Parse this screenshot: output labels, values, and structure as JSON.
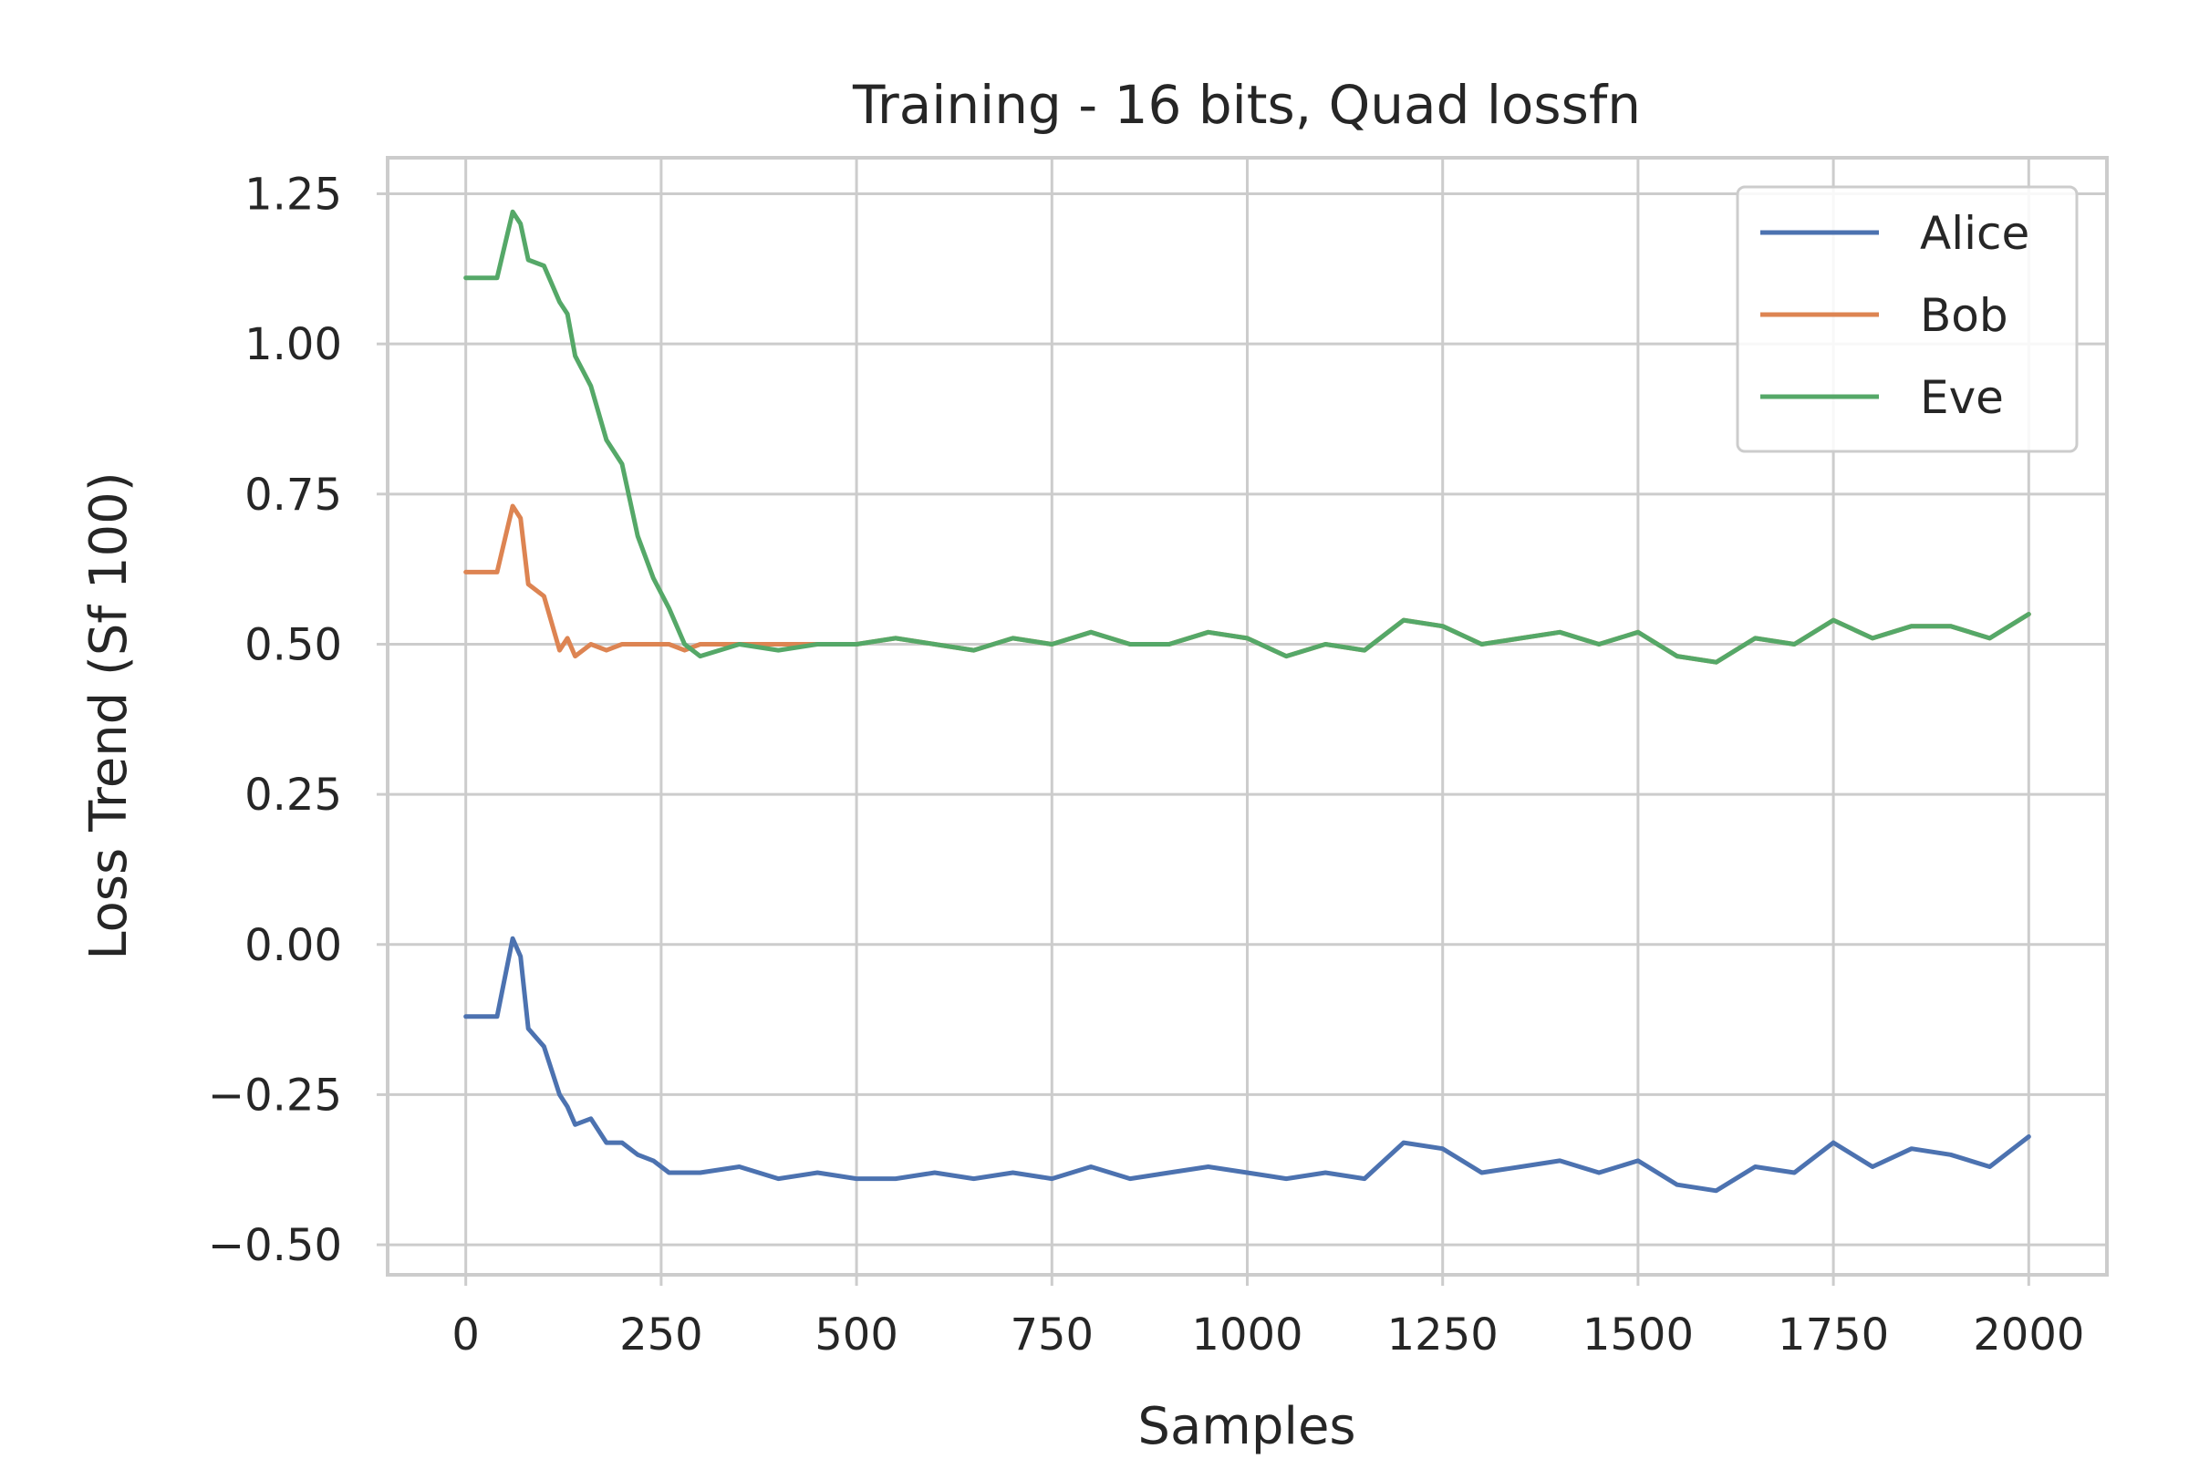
{
  "chart_data": {
    "type": "line",
    "title": "Training - 16 bits, Quad lossfn",
    "xlabel": "Samples",
    "ylabel": "Loss Trend (Sf 100)",
    "xlim": [
      -100,
      2100
    ],
    "ylim": [
      -0.55,
      1.31
    ],
    "xticks": [
      0,
      250,
      500,
      750,
      1000,
      1250,
      1500,
      1750,
      2000
    ],
    "xtick_labels": [
      "0",
      "250",
      "500",
      "750",
      "1000",
      "1250",
      "1500",
      "1750",
      "2000"
    ],
    "yticks": [
      1.25,
      1.0,
      0.75,
      0.5,
      0.25,
      0.0,
      -0.25,
      -0.5
    ],
    "ytick_labels": [
      "1.25",
      "1.00",
      "0.75",
      "0.50",
      "0.25",
      "0.00",
      "−0.25",
      "−0.50"
    ],
    "grid": true,
    "legend_position": "top-right",
    "x": [
      0,
      40,
      60,
      70,
      80,
      100,
      120,
      130,
      140,
      160,
      180,
      200,
      220,
      240,
      260,
      280,
      300,
      350,
      400,
      450,
      500,
      550,
      600,
      650,
      700,
      750,
      800,
      850,
      900,
      950,
      1000,
      1050,
      1100,
      1150,
      1200,
      1250,
      1300,
      1350,
      1400,
      1450,
      1500,
      1550,
      1600,
      1650,
      1700,
      1750,
      1800,
      1850,
      1900,
      1950,
      2000
    ],
    "series": [
      {
        "name": "Alice",
        "color": "#4c72b0",
        "values": [
          -0.12,
          -0.12,
          0.01,
          -0.02,
          -0.14,
          -0.17,
          -0.25,
          -0.27,
          -0.3,
          -0.29,
          -0.33,
          -0.33,
          -0.35,
          -0.36,
          -0.38,
          -0.38,
          -0.38,
          -0.37,
          -0.39,
          -0.38,
          -0.39,
          -0.39,
          -0.38,
          -0.39,
          -0.38,
          -0.39,
          -0.37,
          -0.39,
          -0.38,
          -0.37,
          -0.38,
          -0.39,
          -0.38,
          -0.39,
          -0.33,
          -0.34,
          -0.38,
          -0.37,
          -0.36,
          -0.38,
          -0.36,
          -0.4,
          -0.41,
          -0.37,
          -0.38,
          -0.33,
          -0.37,
          -0.34,
          -0.35,
          -0.37,
          -0.32
        ]
      },
      {
        "name": "Bob",
        "color": "#dd8452",
        "values": [
          0.62,
          0.62,
          0.73,
          0.71,
          0.6,
          0.58,
          0.49,
          0.51,
          0.48,
          0.5,
          0.49,
          0.5,
          0.5,
          0.5,
          0.5,
          0.49,
          0.5,
          0.5,
          0.5,
          0.5,
          0.5,
          0.51,
          0.5,
          0.49,
          0.51,
          0.5,
          0.52,
          0.5,
          0.5,
          0.52,
          0.51,
          0.48,
          0.5,
          0.49,
          0.54,
          0.53,
          0.5,
          0.51,
          0.52,
          0.5,
          0.52,
          0.48,
          0.47,
          0.51,
          0.5,
          0.54,
          0.51,
          0.53,
          0.53,
          0.51,
          0.55
        ]
      },
      {
        "name": "Eve",
        "color": "#55a868",
        "values": [
          1.11,
          1.11,
          1.22,
          1.2,
          1.14,
          1.13,
          1.07,
          1.05,
          0.98,
          0.93,
          0.84,
          0.8,
          0.68,
          0.61,
          0.56,
          0.5,
          0.48,
          0.5,
          0.49,
          0.5,
          0.5,
          0.51,
          0.5,
          0.49,
          0.51,
          0.5,
          0.52,
          0.5,
          0.5,
          0.52,
          0.51,
          0.48,
          0.5,
          0.49,
          0.54,
          0.53,
          0.5,
          0.51,
          0.52,
          0.5,
          0.52,
          0.48,
          0.47,
          0.51,
          0.5,
          0.54,
          0.51,
          0.53,
          0.53,
          0.51,
          0.55
        ]
      }
    ]
  }
}
